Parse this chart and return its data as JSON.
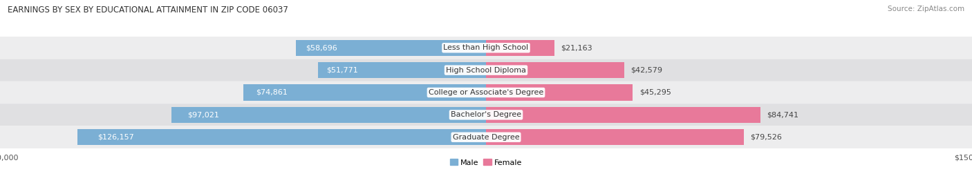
{
  "title": "EARNINGS BY SEX BY EDUCATIONAL ATTAINMENT IN ZIP CODE 06037",
  "source": "Source: ZipAtlas.com",
  "categories": [
    "Less than High School",
    "High School Diploma",
    "College or Associate's Degree",
    "Bachelor's Degree",
    "Graduate Degree"
  ],
  "male_values": [
    58696,
    51771,
    74861,
    97021,
    126157
  ],
  "female_values": [
    21163,
    42579,
    45295,
    84741,
    79526
  ],
  "male_color": "#7BAFD4",
  "female_color": "#E8799A",
  "bar_height": 0.72,
  "max_value": 150000,
  "bg_light": "#ededee",
  "bg_dark": "#e0e0e2",
  "label_fontsize": 8.0,
  "title_fontsize": 8.5,
  "source_fontsize": 7.5,
  "tick_fontsize": 8.0,
  "inside_label_color_male": "#ffffff",
  "inside_label_color_female": "#ffffff",
  "outside_label_color": "#444444",
  "male_inside_threshold": 30000,
  "female_inside_threshold": 30000
}
